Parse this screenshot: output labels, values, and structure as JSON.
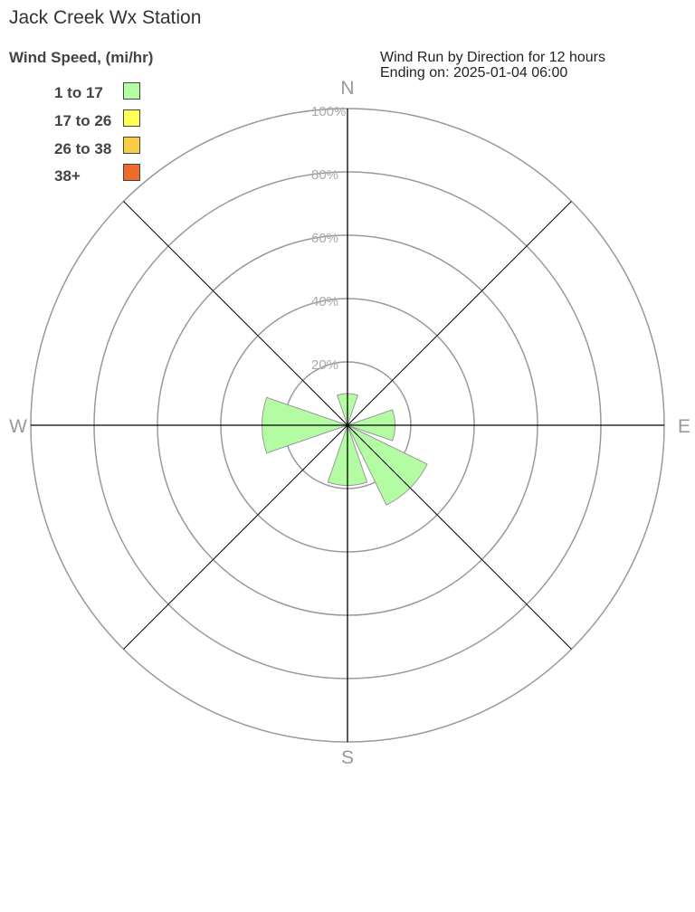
{
  "chart_data": {
    "type": "wind-rose",
    "title": "Jack Creek Wx Station",
    "subtitle_line1": "Wind Run by Direction for 12 hours",
    "subtitle_line2": "Ending on: 2025-01-04 06:00",
    "legend_title": "Wind Speed, (mi/hr)",
    "legend": [
      {
        "label": "1 to 17",
        "color": "#b3fca4"
      },
      {
        "label": "17 to 26",
        "color": "#ffff55"
      },
      {
        "label": "26 to 38",
        "color": "#f8cd45"
      },
      {
        "label": "38+",
        "color": "#ec6c2c"
      }
    ],
    "directions": [
      "N",
      "NE",
      "E",
      "SE",
      "S",
      "SW",
      "W",
      "NW"
    ],
    "compass_labels": {
      "N": "N",
      "E": "E",
      "S": "S",
      "W": "W"
    },
    "ring_labels": [
      "20%",
      "40%",
      "60%",
      "80%",
      "100%"
    ],
    "rlim": [
      0,
      100
    ],
    "series": [
      {
        "name": "1 to 17",
        "values": [
          10,
          0,
          15,
          28,
          19,
          0,
          27,
          0
        ]
      },
      {
        "name": "17 to 26",
        "values": [
          0,
          0,
          0,
          0,
          0,
          0,
          0,
          0
        ]
      },
      {
        "name": "26 to 38",
        "values": [
          0,
          0,
          0,
          0,
          0,
          0,
          0,
          0
        ]
      },
      {
        "name": "38+",
        "values": [
          0,
          0,
          0,
          0,
          0,
          0,
          0,
          0
        ]
      }
    ]
  }
}
